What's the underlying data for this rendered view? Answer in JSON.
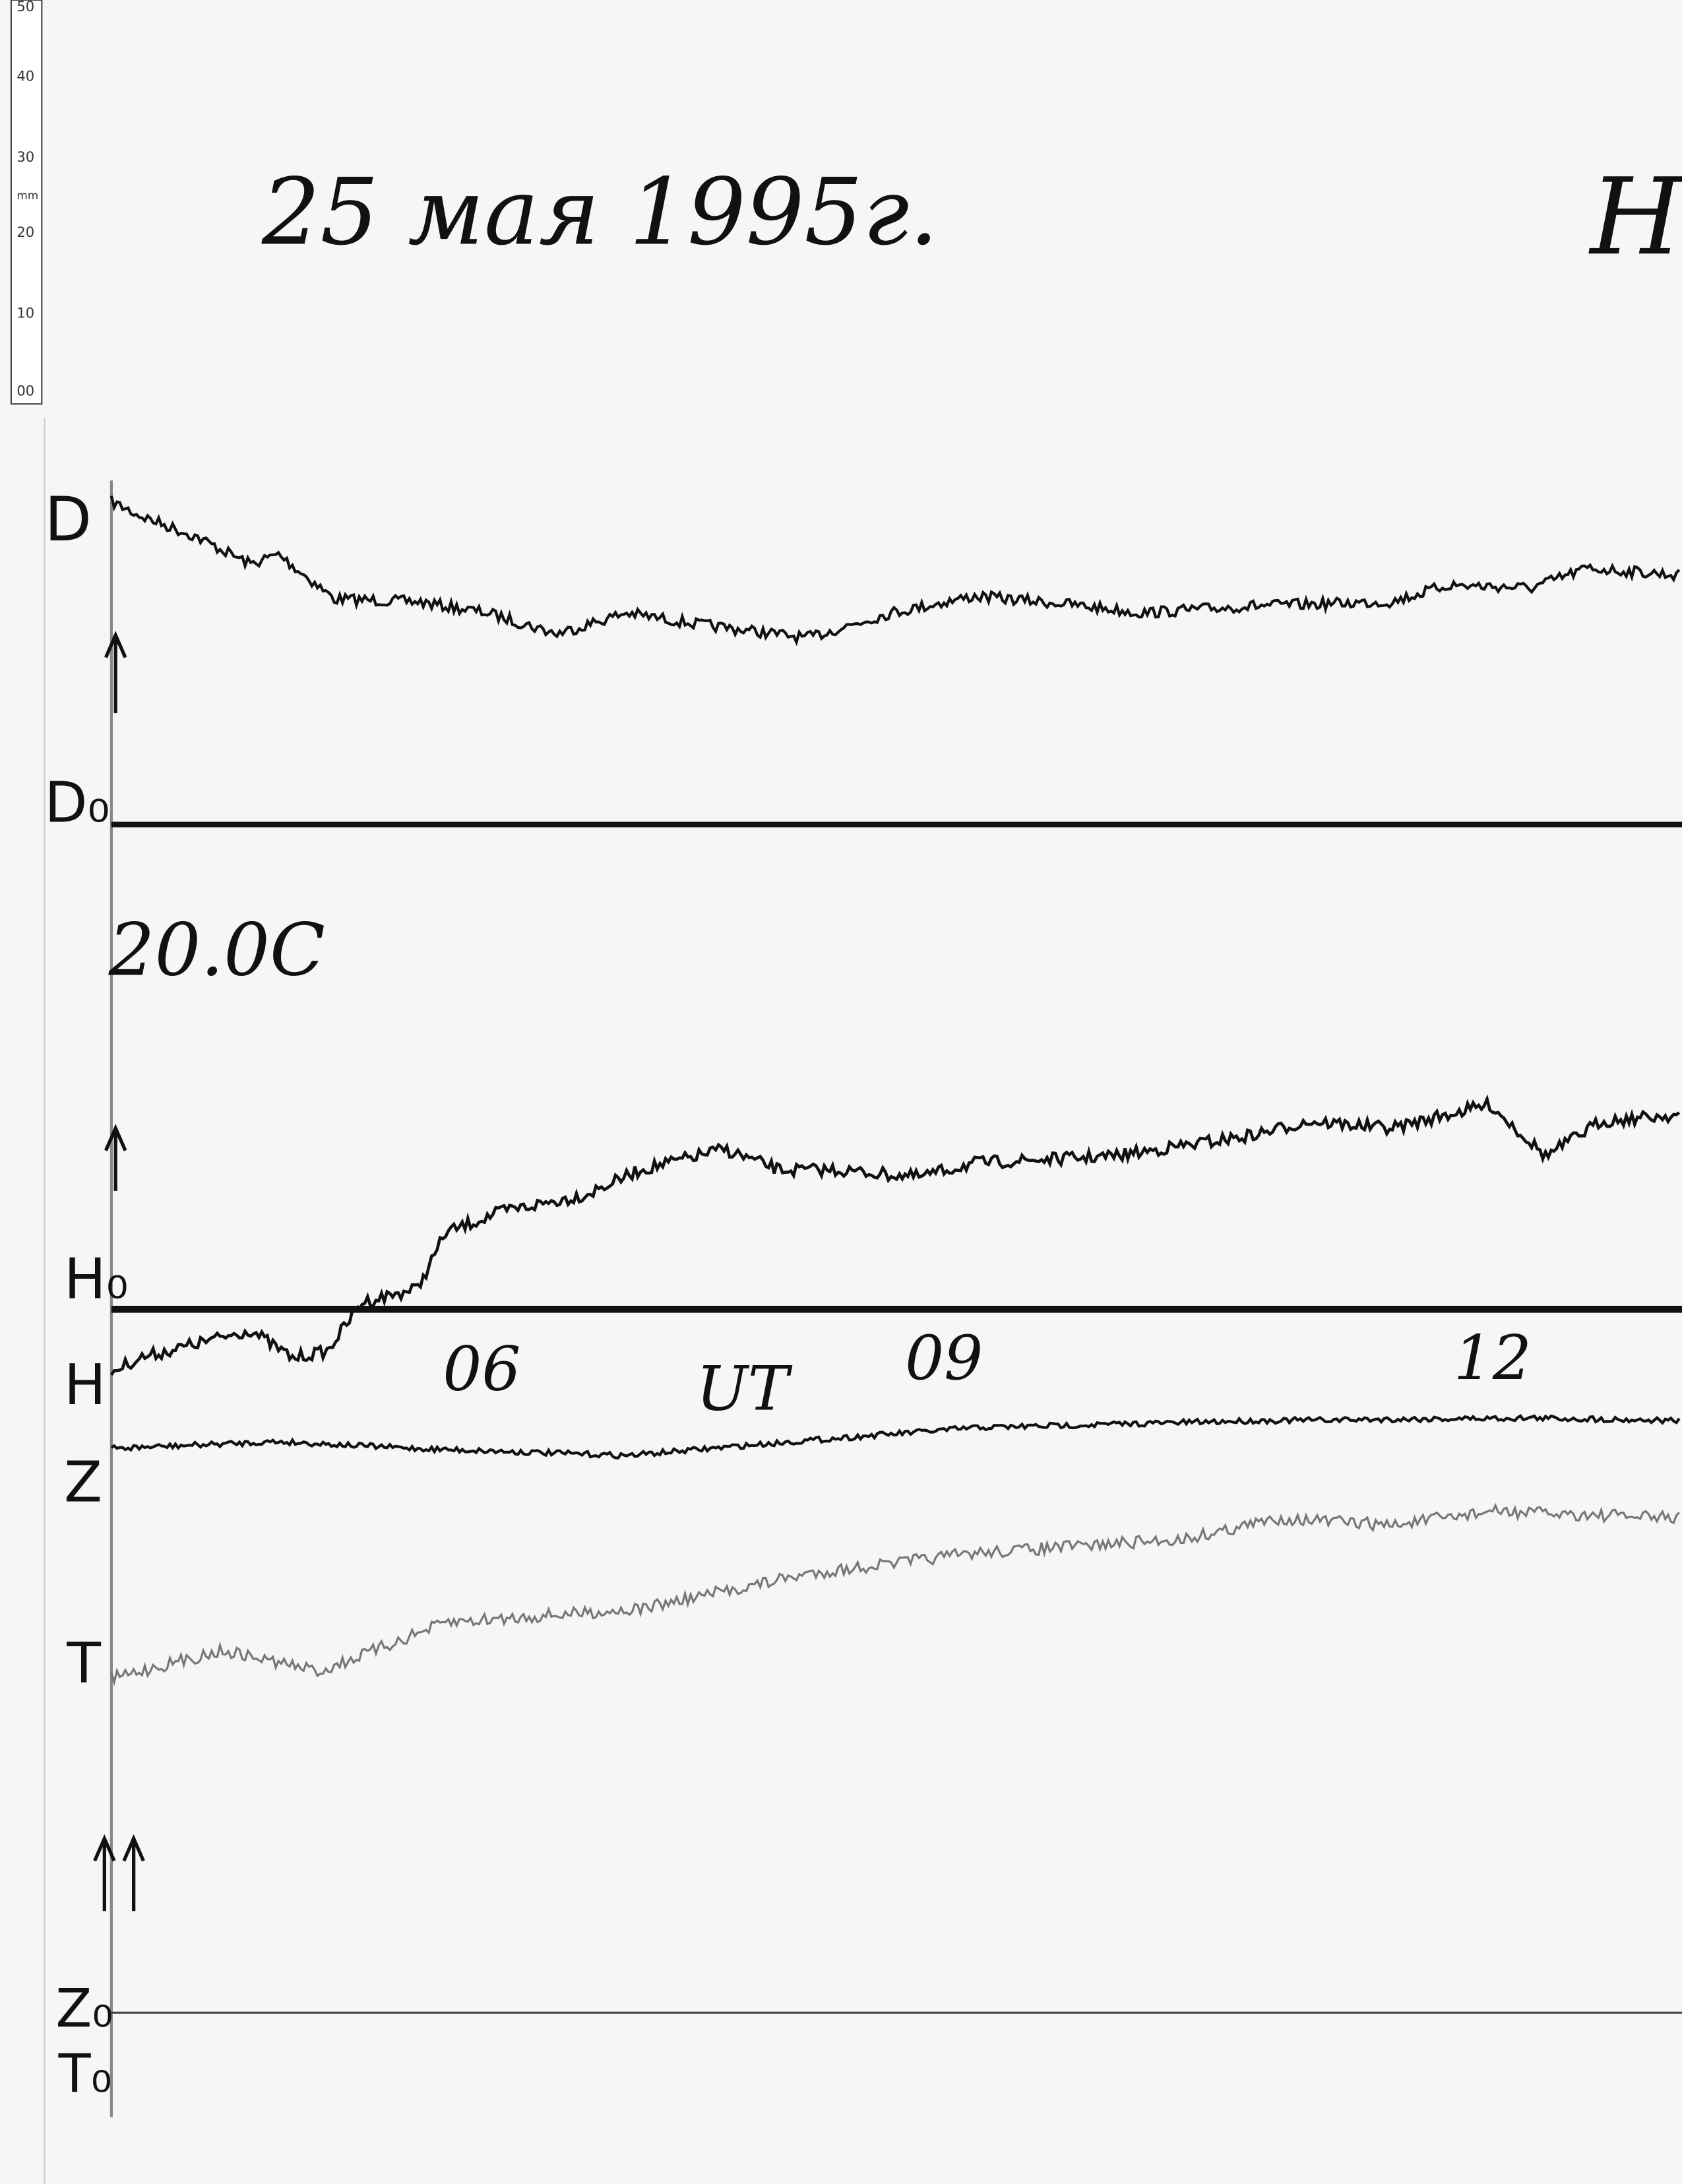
{
  "header": {
    "title": "25 мая 1995г.",
    "station": "Hc"
  },
  "ruler": {
    "labels": [
      "50",
      "40",
      "30",
      "mm",
      "20",
      "10",
      "00"
    ]
  },
  "traces": {
    "d": "D",
    "d0": "D₀",
    "temperature": "20.0C",
    "h0": "H₀",
    "h": "H",
    "z": "Z",
    "t": "T",
    "z0": "Z₀",
    "t0": "T₀"
  },
  "time_axis": {
    "t06": "06",
    "ut": "UT",
    "t09": "09",
    "t12": "12"
  }
}
